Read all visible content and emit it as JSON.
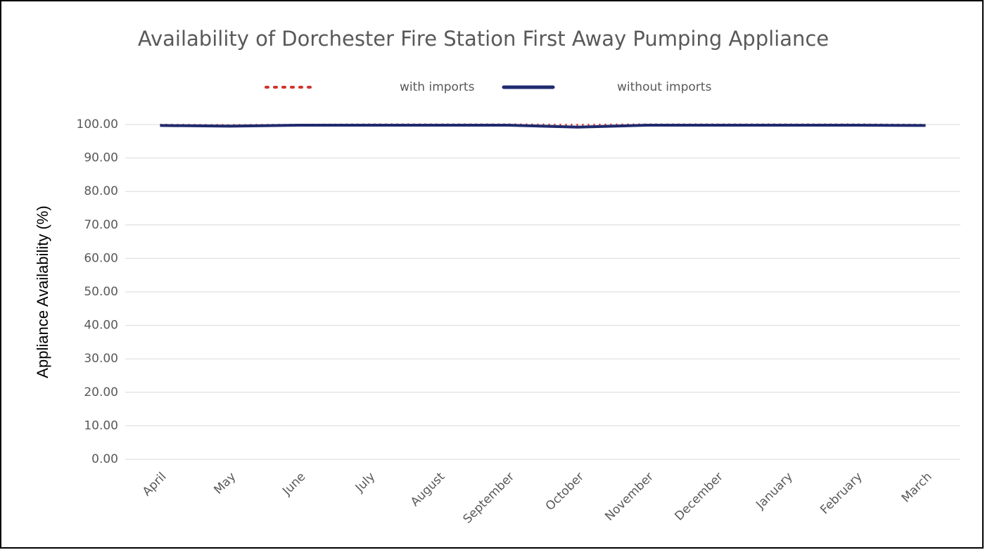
{
  "chart_data": {
    "type": "line",
    "title": "Availability of Dorchester Fire Station First Away Pumping Appliance",
    "y_label": "Appliance Availability (%)",
    "categories": [
      "April",
      "May",
      "June",
      "July",
      "August",
      "September",
      "October",
      "November",
      "December",
      "January",
      "February",
      "March"
    ],
    "series": [
      {
        "name": "with imports",
        "color": "#d0342c",
        "style": "dotted",
        "values": [
          99.9,
          99.8,
          99.9,
          100,
          100,
          100,
          99.9,
          100,
          100,
          100,
          100,
          99.9
        ]
      },
      {
        "name": "without imports",
        "color": "#1f2a6e",
        "style": "solid",
        "values": [
          99.7,
          99.5,
          99.8,
          99.8,
          99.8,
          99.8,
          99.2,
          99.8,
          99.8,
          99.8,
          99.8,
          99.7
        ]
      }
    ],
    "ylim": [
      0,
      100
    ],
    "yticks": [
      {
        "value": 0,
        "label": "0.00"
      },
      {
        "value": 10,
        "label": "10.00"
      },
      {
        "value": 20,
        "label": "20.00"
      },
      {
        "value": 30,
        "label": "30.00"
      },
      {
        "value": 40,
        "label": "40.00"
      },
      {
        "value": 50,
        "label": "50.00"
      },
      {
        "value": 60,
        "label": "60.00"
      },
      {
        "value": 70,
        "label": "70.00"
      },
      {
        "value": 80,
        "label": "80.00"
      },
      {
        "value": 90,
        "label": "90.00"
      },
      {
        "value": 100,
        "label": "100.00"
      }
    ],
    "grid": true,
    "legend": "top"
  }
}
